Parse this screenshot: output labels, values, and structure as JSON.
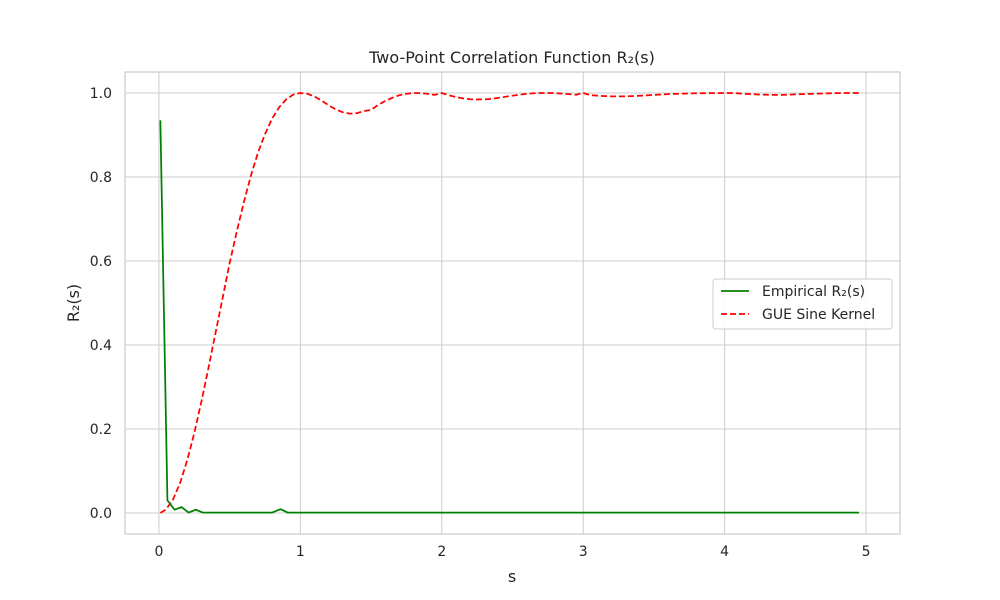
{
  "chart_data": {
    "type": "line",
    "title": "Two-Point Correlation Function R₂(s)",
    "xlabel": "s",
    "ylabel": "R₂(s)",
    "xlim": [
      -0.24,
      5.24
    ],
    "ylim": [
      -0.05,
      1.05
    ],
    "xticks": [
      0,
      1,
      2,
      3,
      4,
      5
    ],
    "xtick_labels": [
      "0",
      "1",
      "2",
      "3",
      "4",
      "5"
    ],
    "yticks": [
      0.0,
      0.2,
      0.4,
      0.6,
      0.8,
      1.0
    ],
    "ytick_labels": [
      "0.0",
      "0.2",
      "0.4",
      "0.6",
      "0.8",
      "1.0"
    ],
    "grid": true,
    "legend_position": "center-right",
    "series": [
      {
        "name": "Empirical R₂(s)",
        "color": "#008000",
        "style": "solid",
        "x": [
          0.01,
          0.06,
          0.11,
          0.16,
          0.21,
          0.26,
          0.31,
          0.8,
          0.86,
          0.91,
          4.95
        ],
        "y": [
          0.935,
          0.03,
          0.008,
          0.014,
          0.001,
          0.008,
          0.001,
          0.001,
          0.009,
          0.001,
          0.001
        ]
      },
      {
        "name": "GUE Sine Kernel",
        "color": "#ff0000",
        "style": "dashed",
        "x": [
          0.01,
          0.05,
          0.1,
          0.15,
          0.2,
          0.25,
          0.3,
          0.35,
          0.4,
          0.45,
          0.5,
          0.55,
          0.6,
          0.65,
          0.7,
          0.75,
          0.8,
          0.85,
          0.9,
          0.95,
          1.0,
          1.05,
          1.1,
          1.15,
          1.2,
          1.25,
          1.3,
          1.35,
          1.4,
          1.45,
          1.5,
          1.55,
          1.6,
          1.65,
          1.7,
          1.75,
          1.8,
          1.85,
          1.9,
          1.95,
          2.0,
          2.05,
          2.1,
          2.15,
          2.2,
          2.25,
          2.3,
          2.35,
          2.4,
          2.45,
          2.5,
          2.55,
          2.6,
          2.65,
          2.7,
          2.75,
          2.8,
          2.85,
          2.9,
          2.95,
          3.0,
          3.05,
          3.1,
          3.15,
          3.2,
          3.25,
          3.3,
          3.35,
          3.4,
          3.45,
          3.5,
          3.55,
          3.6,
          3.65,
          3.7,
          3.75,
          3.8,
          3.85,
          3.9,
          3.95,
          4.0,
          4.05,
          4.1,
          4.15,
          4.2,
          4.25,
          4.3,
          4.35,
          4.4,
          4.45,
          4.5,
          4.55,
          4.6,
          4.65,
          4.7,
          4.75,
          4.8,
          4.85,
          4.9,
          4.95
        ],
        "y": [
          0.0003,
          0.0082,
          0.0325,
          0.0721,
          0.1255,
          0.1906,
          0.2648,
          0.3452,
          0.4285,
          0.5114,
          0.5947,
          0.6698,
          0.7397,
          0.8029,
          0.8577,
          0.9021,
          0.9388,
          0.966,
          0.9848,
          0.9963,
          1.0,
          0.9982,
          0.9917,
          0.9817,
          0.9708,
          0.961,
          0.954,
          0.9509,
          0.952,
          0.957,
          0.9595,
          0.9718,
          0.981,
          0.9885,
          0.9948,
          0.9983,
          1.0,
          0.9998,
          0.9981,
          0.9955,
          1.0,
          0.9946,
          0.9903,
          0.9872,
          0.9852,
          0.9844,
          0.9848,
          0.9862,
          0.9884,
          0.991,
          0.9936,
          0.996,
          0.9979,
          0.9993,
          1.0,
          1.0,
          0.9995,
          0.9985,
          0.9972,
          0.9958,
          1.0,
          0.995,
          0.9938,
          0.9927,
          0.992,
          0.9918,
          0.992,
          0.9926,
          0.9934,
          0.9944,
          0.9954,
          0.9964,
          0.9973,
          0.998,
          0.9986,
          0.999,
          0.9993,
          0.9995,
          0.9996,
          0.9997,
          1.0,
          0.9997,
          0.999,
          0.998,
          0.997,
          0.9962,
          0.9957,
          0.9955,
          0.9956,
          0.996,
          0.9966,
          0.9972,
          0.9979,
          0.9985,
          0.999,
          0.9994,
          0.9997,
          0.9999,
          1.0,
          1.0
        ]
      }
    ]
  }
}
